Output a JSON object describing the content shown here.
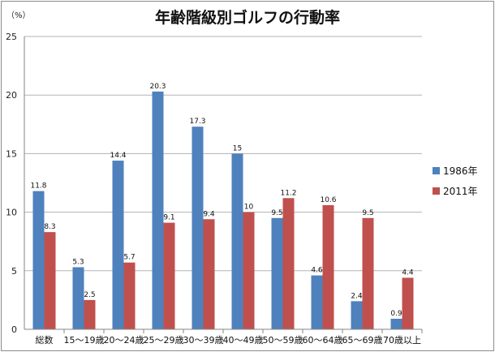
{
  "chart_data": {
    "type": "bar",
    "title": "年齢階級別ゴルフの行動率",
    "unit_label": "（%）",
    "categories": [
      "総数",
      "15～19歳",
      "20～24歳",
      "25～29歳",
      "30～39歳",
      "40～49歳",
      "50～59歳",
      "60～64歳",
      "65～69歳",
      "70歳以上"
    ],
    "series": [
      {
        "name": "1986年",
        "color": "#4f81bd",
        "values": [
          11.8,
          5.3,
          14.4,
          20.3,
          17.3,
          15,
          9.5,
          4.6,
          2.4,
          0.9
        ]
      },
      {
        "name": "2011年",
        "color": "#c0504d",
        "values": [
          8.3,
          2.5,
          5.7,
          9.1,
          9.4,
          10,
          11.2,
          10.6,
          9.5,
          4.4
        ]
      }
    ],
    "ylim": [
      0,
      25
    ],
    "yticks": [
      0,
      5,
      10,
      15,
      20,
      25
    ],
    "grid": true,
    "legend_position": "right"
  }
}
